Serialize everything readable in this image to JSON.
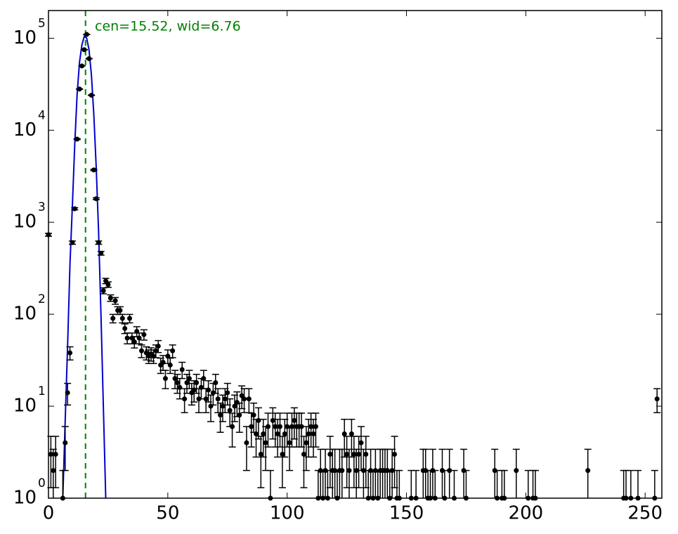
{
  "chart_data": {
    "type": "errorbar",
    "annotation": "cen=15.52, wid=6.76",
    "fit_center": 15.52,
    "center_color": "#008000",
    "log_y": true,
    "xlim": [
      0,
      257
    ],
    "ylim": [
      1,
      200000
    ],
    "xticks": [
      0,
      50,
      100,
      150,
      200,
      250
    ],
    "yticks": [
      {
        "value": 1,
        "label": "10",
        "exponent": "0"
      },
      {
        "value": 10,
        "label": "10",
        "exponent": "1"
      },
      {
        "value": 100,
        "label": "10",
        "exponent": "2"
      },
      {
        "value": 1000,
        "label": "10",
        "exponent": "3"
      },
      {
        "value": 10000,
        "label": "10",
        "exponent": "4"
      },
      {
        "value": 100000,
        "label": "10",
        "exponent": "5"
      }
    ],
    "fit": {
      "color": "#0000cc",
      "x": [
        6,
        7,
        8,
        9,
        10,
        11,
        12,
        13,
        14,
        15,
        16,
        17,
        18,
        19,
        20,
        21,
        22,
        23,
        24
      ],
      "values": [
        1,
        7,
        45,
        350,
        1500,
        7000,
        25000,
        55000,
        85000,
        105000,
        100000,
        75000,
        40000,
        15000,
        4000,
        800,
        100,
        10,
        1
      ]
    },
    "data": {
      "color": "#000000",
      "x": [
        0,
        1,
        2,
        3,
        6,
        7,
        8,
        9,
        10,
        11,
        12,
        13,
        14,
        15,
        16,
        17,
        18,
        19,
        20,
        21,
        22,
        23,
        24,
        25,
        26,
        27,
        28,
        29,
        30,
        31,
        32,
        33,
        34,
        35,
        36,
        37,
        38,
        39,
        40,
        41,
        42,
        43,
        44,
        45,
        46,
        47,
        48,
        49,
        50,
        51,
        52,
        53,
        54,
        55,
        56,
        57,
        58,
        59,
        60,
        61,
        62,
        63,
        64,
        65,
        66,
        67,
        68,
        69,
        70,
        71,
        72,
        73,
        74,
        75,
        76,
        77,
        78,
        79,
        80,
        81,
        82,
        83,
        84,
        85,
        86,
        87,
        88,
        89,
        90,
        91,
        92,
        93,
        94,
        95,
        96,
        97,
        98,
        99,
        100,
        101,
        102,
        103,
        104,
        105,
        106,
        107,
        108,
        109,
        110,
        111,
        112,
        113,
        114,
        115,
        116,
        117,
        118,
        119,
        120,
        121,
        122,
        123,
        124,
        125,
        126,
        127,
        128,
        129,
        130,
        131,
        132,
        133,
        134,
        135,
        136,
        137,
        138,
        139,
        140,
        141,
        142,
        143,
        144,
        145,
        146,
        147,
        152,
        154,
        157,
        158,
        159,
        160,
        161,
        162,
        165,
        166,
        168,
        170,
        174,
        175,
        187,
        188,
        190,
        191,
        196,
        201,
        203,
        204,
        226,
        241,
        242,
        244,
        247,
        254,
        255
      ],
      "values": [
        730,
        3,
        2,
        3,
        1,
        4,
        14,
        38,
        600,
        1400,
        8000,
        28000,
        50000,
        75000,
        110000,
        60000,
        24000,
        3700,
        1800,
        600,
        460,
        180,
        230,
        210,
        150,
        90,
        140,
        110,
        110,
        90,
        70,
        55,
        90,
        55,
        50,
        65,
        55,
        40,
        60,
        38,
        35,
        37,
        35,
        40,
        45,
        28,
        30,
        20,
        35,
        28,
        40,
        20,
        18,
        16,
        25,
        12,
        18,
        20,
        14,
        15,
        18,
        12,
        16,
        20,
        12,
        15,
        10,
        14,
        18,
        12,
        8,
        10,
        12,
        14,
        9,
        6,
        10,
        11,
        8,
        13,
        12,
        4,
        12,
        6,
        8,
        5,
        7,
        3,
        5,
        4,
        6,
        1,
        7,
        6,
        5,
        6,
        3,
        5,
        6,
        4,
        6,
        7,
        6,
        6,
        6,
        3,
        4,
        5,
        6,
        5,
        6,
        1,
        2,
        1,
        2,
        1,
        3,
        2,
        2,
        1,
        2,
        2,
        5,
        3,
        2,
        5,
        3,
        2,
        3,
        4,
        2,
        3,
        1,
        2,
        1,
        2,
        1,
        2,
        2,
        2,
        2,
        1,
        2,
        3,
        1,
        1,
        1,
        1,
        2,
        2,
        1,
        1,
        2,
        1,
        2,
        1,
        2,
        1,
        2,
        1,
        2,
        1,
        1,
        1,
        2,
        1,
        1,
        1,
        2,
        1,
        1,
        1,
        1,
        1,
        12
      ],
      "errors": [
        27,
        1.7,
        1.4,
        1.7,
        1,
        2,
        3.7,
        6.2,
        24.5,
        37.4,
        89.4,
        167.3,
        223.6,
        273.9,
        331.7,
        244.9,
        154.9,
        60.8,
        42.4,
        24.5,
        21.4,
        13.4,
        15.2,
        14.5,
        12.2,
        9.5,
        11.8,
        10.5,
        10.5,
        9.5,
        8.4,
        7.4,
        9.5,
        7.4,
        7.1,
        8.1,
        7.4,
        6.3,
        7.7,
        6.2,
        5.9,
        6.1,
        5.9,
        6.3,
        6.7,
        5.3,
        5.5,
        4.5,
        5.9,
        5.3,
        6.3,
        4.5,
        4.2,
        4,
        5,
        3.5,
        4.2,
        4.5,
        3.7,
        3.9,
        4.2,
        3.5,
        4,
        4.5,
        3.5,
        3.9,
        3.2,
        3.7,
        4.2,
        3.5,
        2.8,
        3.2,
        3.5,
        3.7,
        3,
        2.4,
        3.2,
        3.3,
        2.8,
        3.6,
        3.5,
        2,
        3.5,
        2.4,
        2.8,
        2.2,
        2.6,
        1.7,
        2.2,
        2,
        2.4,
        1,
        2.6,
        2.4,
        2.2,
        2.4,
        1.7,
        2.2,
        2.4,
        2,
        2.4,
        2.6,
        2.4,
        2.4,
        2.4,
        1.7,
        2,
        2.2,
        2.4,
        2.2,
        2.4,
        1,
        1.4,
        1,
        1.4,
        1,
        1.7,
        1.4,
        1.4,
        1,
        1.4,
        1.4,
        2.2,
        1.7,
        1.4,
        2.2,
        1.7,
        1.4,
        1.7,
        2,
        1.4,
        1.7,
        1,
        1.4,
        1,
        1.4,
        1,
        1.4,
        1.4,
        1.4,
        1.4,
        1,
        1.4,
        1.7,
        1,
        1,
        1,
        1,
        1.4,
        1.4,
        1,
        1,
        1.4,
        1,
        1.4,
        1,
        1.4,
        1,
        1.4,
        1,
        1.4,
        1,
        1,
        1,
        1.4,
        1,
        1,
        1,
        1.4,
        1,
        1,
        1,
        1,
        1,
        3.5
      ]
    }
  }
}
